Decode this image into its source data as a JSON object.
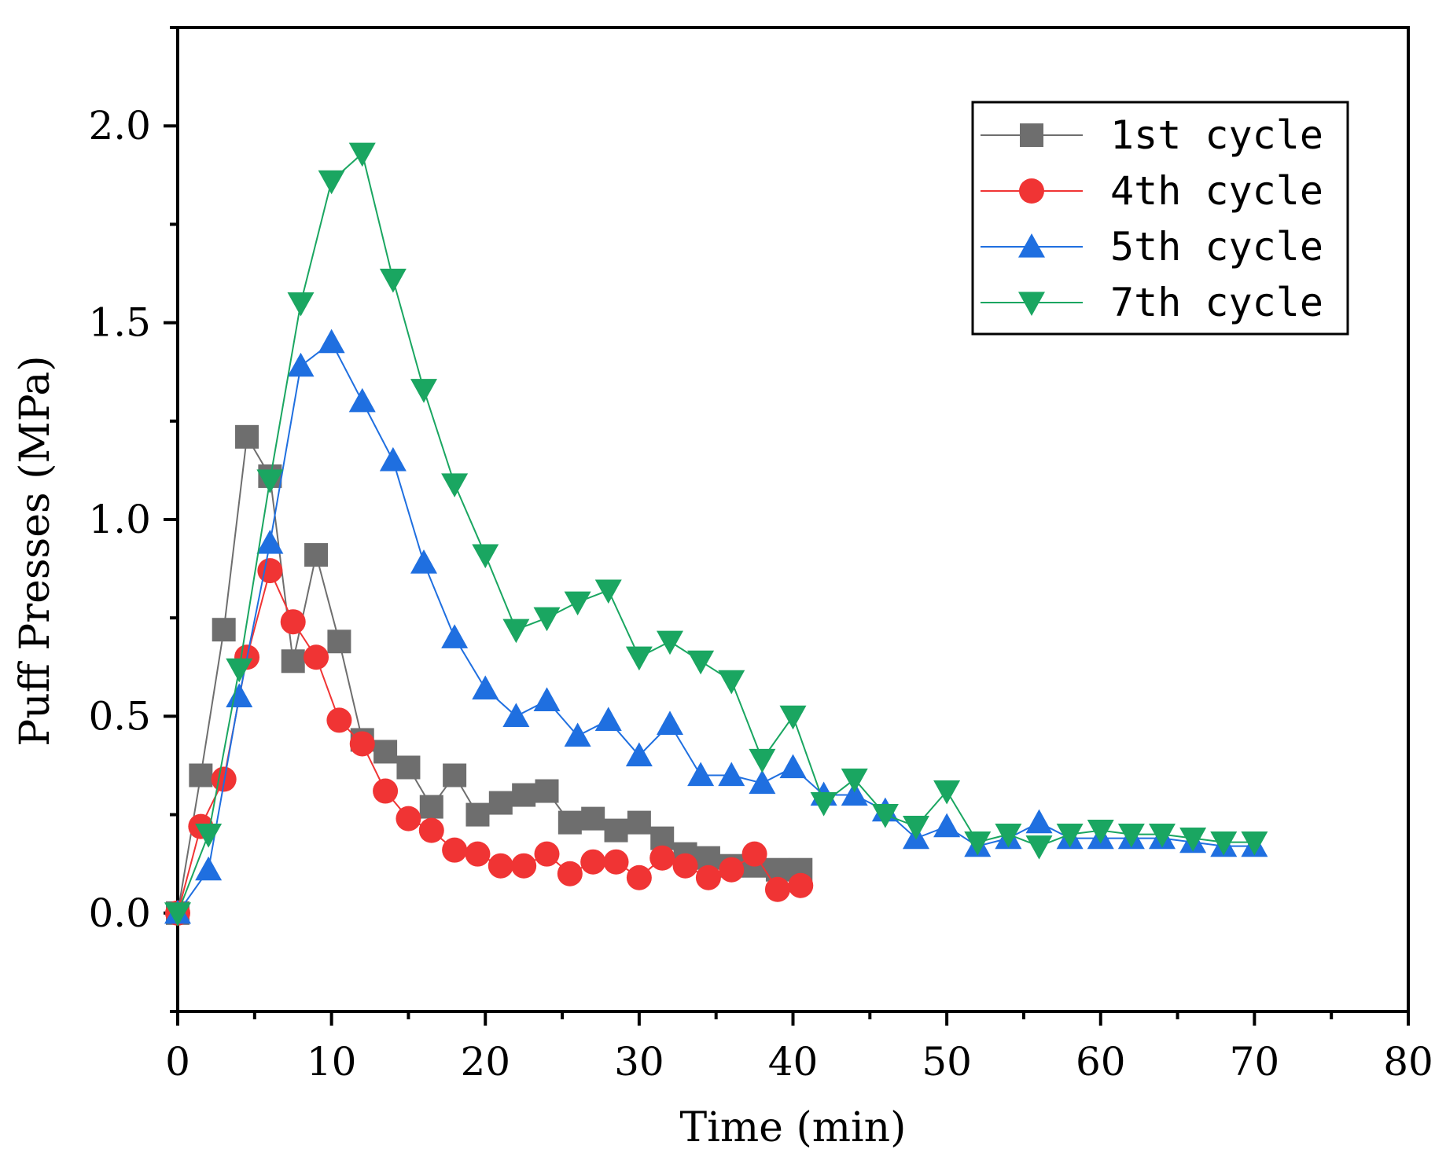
{
  "chart_data": {
    "type": "line",
    "title": "",
    "xlabel": "Time (min)",
    "ylabel": "Puff Presses (MPa)",
    "xlim": [
      0,
      80
    ],
    "ylim": [
      -0.25,
      2.25
    ],
    "xticks": [
      0,
      10,
      20,
      30,
      40,
      50,
      60,
      70,
      80
    ],
    "xtick_labels": [
      "0",
      "10",
      "20",
      "30",
      "40",
      "50",
      "60",
      "70",
      "80"
    ],
    "yticks": [
      0.0,
      0.5,
      1.0,
      1.5,
      2.0
    ],
    "ytick_labels": [
      "0.0",
      "0.5",
      "1.0",
      "1.5",
      "2.0"
    ],
    "grid": false,
    "legend_position": "top-right",
    "series": [
      {
        "name": "1st cycle",
        "color": "#6e6e6e",
        "marker": "square",
        "x": [
          0,
          1.5,
          3,
          4.5,
          6,
          7.5,
          9,
          10.5,
          12,
          13.5,
          15,
          16.5,
          18,
          19.5,
          21,
          22.5,
          24,
          25.5,
          27,
          28.5,
          30,
          31.5,
          33,
          34.5,
          36,
          37.5,
          39,
          40.5
        ],
        "y": [
          0.0,
          0.35,
          0.72,
          1.21,
          1.11,
          0.64,
          0.91,
          0.69,
          0.44,
          0.41,
          0.37,
          0.27,
          0.35,
          0.25,
          0.28,
          0.3,
          0.31,
          0.23,
          0.24,
          0.21,
          0.23,
          0.19,
          0.15,
          0.14,
          0.12,
          0.12,
          0.11,
          0.11
        ]
      },
      {
        "name": "4th cycle",
        "color": "#f03434",
        "marker": "circle",
        "x": [
          0,
          1.5,
          3,
          4.5,
          6,
          7.5,
          9,
          10.5,
          12,
          13.5,
          15,
          16.5,
          18,
          19.5,
          21,
          22.5,
          24,
          25.5,
          27,
          28.5,
          30,
          31.5,
          33,
          34.5,
          36,
          37.5,
          39,
          40.5
        ],
        "y": [
          0.0,
          0.22,
          0.34,
          0.65,
          0.87,
          0.74,
          0.65,
          0.49,
          0.43,
          0.31,
          0.24,
          0.21,
          0.16,
          0.15,
          0.12,
          0.12,
          0.15,
          0.1,
          0.13,
          0.13,
          0.09,
          0.14,
          0.12,
          0.09,
          0.11,
          0.15,
          0.06,
          0.07
        ]
      },
      {
        "name": "5th cycle",
        "color": "#1f6fe0",
        "marker": "triangle-up",
        "x": [
          0,
          2,
          4,
          6,
          8,
          10,
          12,
          14,
          16,
          18,
          20,
          22,
          24,
          26,
          28,
          30,
          32,
          34,
          36,
          38,
          40,
          42,
          44,
          46,
          48,
          50,
          52,
          54,
          56,
          58,
          60,
          62,
          64,
          66,
          68,
          70
        ],
        "y": [
          0.0,
          0.11,
          0.55,
          0.94,
          1.39,
          1.45,
          1.3,
          1.15,
          0.89,
          0.7,
          0.57,
          0.5,
          0.54,
          0.45,
          0.49,
          0.4,
          0.48,
          0.35,
          0.35,
          0.33,
          0.37,
          0.3,
          0.3,
          0.26,
          0.19,
          0.22,
          0.17,
          0.19,
          0.23,
          0.19,
          0.19,
          0.19,
          0.19,
          0.18,
          0.17,
          0.17
        ]
      },
      {
        "name": "7th cycle",
        "color": "#1aa661",
        "marker": "triangle-down",
        "x": [
          0,
          2,
          4,
          6,
          8,
          10,
          12,
          14,
          16,
          18,
          20,
          22,
          24,
          26,
          28,
          30,
          32,
          34,
          36,
          38,
          40,
          42,
          44,
          46,
          48,
          50,
          52,
          54,
          56,
          58,
          60,
          62,
          64,
          66,
          68,
          70
        ],
        "y": [
          0.0,
          0.2,
          0.62,
          1.1,
          1.55,
          1.86,
          1.93,
          1.61,
          1.33,
          1.09,
          0.91,
          0.72,
          0.75,
          0.79,
          0.82,
          0.65,
          0.69,
          0.64,
          0.59,
          0.39,
          0.5,
          0.28,
          0.34,
          0.25,
          0.22,
          0.31,
          0.18,
          0.2,
          0.17,
          0.2,
          0.21,
          0.2,
          0.2,
          0.19,
          0.18,
          0.18
        ]
      }
    ]
  }
}
